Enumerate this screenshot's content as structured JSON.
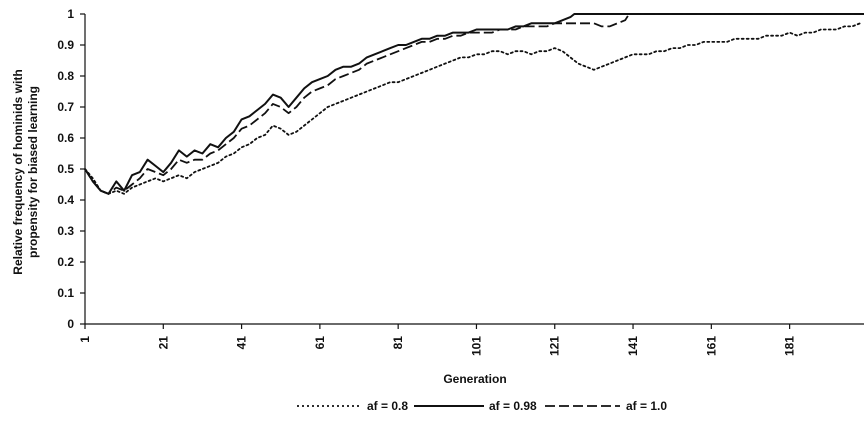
{
  "chart_data": {
    "type": "line",
    "title": "",
    "xlabel": "Generation",
    "ylabel_lines": [
      "Relative frequency of hominids with",
      "propensity for biased learning"
    ],
    "xlim": [
      1,
      200
    ],
    "ylim": [
      0,
      1
    ],
    "x_ticks": [
      "1",
      "21",
      "41",
      "61",
      "81",
      "101",
      "121",
      "141",
      "161",
      "181"
    ],
    "x_tick_values": [
      1,
      21,
      41,
      61,
      81,
      101,
      121,
      141,
      161,
      181
    ],
    "y_ticks": [
      "0",
      "0.1",
      "0.2",
      "0.3",
      "0.4",
      "0.5",
      "0.6",
      "0.7",
      "0.8",
      "0.9",
      "1"
    ],
    "y_tick_values": [
      0,
      0.1,
      0.2,
      0.3,
      0.4,
      0.5,
      0.6,
      0.7,
      0.8,
      0.9,
      1.0
    ],
    "grid": false,
    "legend_position": "bottom-center",
    "series": [
      {
        "name": "af = 0.8",
        "style": "dotted",
        "color": "#111111",
        "points": [
          [
            1,
            0.5
          ],
          [
            3,
            0.47
          ],
          [
            5,
            0.43
          ],
          [
            7,
            0.42
          ],
          [
            9,
            0.43
          ],
          [
            11,
            0.42
          ],
          [
            13,
            0.44
          ],
          [
            15,
            0.45
          ],
          [
            17,
            0.46
          ],
          [
            19,
            0.47
          ],
          [
            21,
            0.46
          ],
          [
            23,
            0.47
          ],
          [
            25,
            0.48
          ],
          [
            27,
            0.47
          ],
          [
            29,
            0.49
          ],
          [
            31,
            0.5
          ],
          [
            33,
            0.51
          ],
          [
            35,
            0.52
          ],
          [
            37,
            0.54
          ],
          [
            39,
            0.55
          ],
          [
            41,
            0.57
          ],
          [
            43,
            0.58
          ],
          [
            45,
            0.6
          ],
          [
            47,
            0.61
          ],
          [
            49,
            0.64
          ],
          [
            51,
            0.63
          ],
          [
            53,
            0.61
          ],
          [
            55,
            0.62
          ],
          [
            57,
            0.64
          ],
          [
            59,
            0.66
          ],
          [
            61,
            0.68
          ],
          [
            63,
            0.7
          ],
          [
            65,
            0.71
          ],
          [
            67,
            0.72
          ],
          [
            69,
            0.73
          ],
          [
            71,
            0.74
          ],
          [
            73,
            0.75
          ],
          [
            75,
            0.76
          ],
          [
            77,
            0.77
          ],
          [
            79,
            0.78
          ],
          [
            81,
            0.78
          ],
          [
            83,
            0.79
          ],
          [
            85,
            0.8
          ],
          [
            87,
            0.81
          ],
          [
            89,
            0.82
          ],
          [
            91,
            0.83
          ],
          [
            93,
            0.84
          ],
          [
            95,
            0.85
          ],
          [
            97,
            0.86
          ],
          [
            99,
            0.86
          ],
          [
            101,
            0.87
          ],
          [
            103,
            0.87
          ],
          [
            105,
            0.88
          ],
          [
            107,
            0.88
          ],
          [
            109,
            0.87
          ],
          [
            111,
            0.88
          ],
          [
            113,
            0.88
          ],
          [
            115,
            0.87
          ],
          [
            117,
            0.88
          ],
          [
            119,
            0.88
          ],
          [
            121,
            0.89
          ],
          [
            123,
            0.88
          ],
          [
            125,
            0.86
          ],
          [
            127,
            0.84
          ],
          [
            129,
            0.83
          ],
          [
            131,
            0.82
          ],
          [
            133,
            0.83
          ],
          [
            135,
            0.84
          ],
          [
            137,
            0.85
          ],
          [
            139,
            0.86
          ],
          [
            141,
            0.87
          ],
          [
            143,
            0.87
          ],
          [
            145,
            0.87
          ],
          [
            147,
            0.88
          ],
          [
            149,
            0.88
          ],
          [
            151,
            0.89
          ],
          [
            153,
            0.89
          ],
          [
            155,
            0.9
          ],
          [
            157,
            0.9
          ],
          [
            159,
            0.91
          ],
          [
            161,
            0.91
          ],
          [
            163,
            0.91
          ],
          [
            165,
            0.91
          ],
          [
            167,
            0.92
          ],
          [
            169,
            0.92
          ],
          [
            171,
            0.92
          ],
          [
            173,
            0.92
          ],
          [
            175,
            0.93
          ],
          [
            177,
            0.93
          ],
          [
            179,
            0.93
          ],
          [
            181,
            0.94
          ],
          [
            183,
            0.93
          ],
          [
            185,
            0.94
          ],
          [
            187,
            0.94
          ],
          [
            189,
            0.95
          ],
          [
            191,
            0.95
          ],
          [
            193,
            0.95
          ],
          [
            195,
            0.96
          ],
          [
            197,
            0.96
          ],
          [
            199,
            0.97
          ]
        ]
      },
      {
        "name": "af = 0.98",
        "style": "solid",
        "color": "#111111",
        "points": [
          [
            1,
            0.5
          ],
          [
            3,
            0.46
          ],
          [
            5,
            0.43
          ],
          [
            7,
            0.42
          ],
          [
            9,
            0.46
          ],
          [
            11,
            0.43
          ],
          [
            13,
            0.48
          ],
          [
            15,
            0.49
          ],
          [
            17,
            0.53
          ],
          [
            19,
            0.51
          ],
          [
            21,
            0.49
          ],
          [
            23,
            0.52
          ],
          [
            25,
            0.56
          ],
          [
            27,
            0.54
          ],
          [
            29,
            0.56
          ],
          [
            31,
            0.55
          ],
          [
            33,
            0.58
          ],
          [
            35,
            0.57
          ],
          [
            37,
            0.6
          ],
          [
            39,
            0.62
          ],
          [
            41,
            0.66
          ],
          [
            43,
            0.67
          ],
          [
            45,
            0.69
          ],
          [
            47,
            0.71
          ],
          [
            49,
            0.74
          ],
          [
            51,
            0.73
          ],
          [
            53,
            0.7
          ],
          [
            55,
            0.73
          ],
          [
            57,
            0.76
          ],
          [
            59,
            0.78
          ],
          [
            61,
            0.79
          ],
          [
            63,
            0.8
          ],
          [
            65,
            0.82
          ],
          [
            67,
            0.83
          ],
          [
            69,
            0.83
          ],
          [
            71,
            0.84
          ],
          [
            73,
            0.86
          ],
          [
            75,
            0.87
          ],
          [
            77,
            0.88
          ],
          [
            79,
            0.89
          ],
          [
            81,
            0.9
          ],
          [
            83,
            0.9
          ],
          [
            85,
            0.91
          ],
          [
            87,
            0.92
          ],
          [
            89,
            0.92
          ],
          [
            91,
            0.93
          ],
          [
            93,
            0.93
          ],
          [
            95,
            0.94
          ],
          [
            97,
            0.94
          ],
          [
            99,
            0.94
          ],
          [
            101,
            0.95
          ],
          [
            103,
            0.95
          ],
          [
            105,
            0.95
          ],
          [
            107,
            0.95
          ],
          [
            109,
            0.95
          ],
          [
            111,
            0.96
          ],
          [
            113,
            0.96
          ],
          [
            115,
            0.97
          ],
          [
            117,
            0.97
          ],
          [
            119,
            0.97
          ],
          [
            121,
            0.97
          ],
          [
            123,
            0.98
          ],
          [
            125,
            0.99
          ],
          [
            126,
            1.0
          ],
          [
            131,
            1.0
          ],
          [
            141,
            1.0
          ],
          [
            151,
            1.0
          ],
          [
            161,
            1.0
          ],
          [
            171,
            1.0
          ],
          [
            181,
            1.0
          ],
          [
            191,
            1.0
          ],
          [
            200,
            1.0
          ]
        ]
      },
      {
        "name": "af = 1.0",
        "style": "dashed",
        "color": "#111111",
        "points": [
          [
            1,
            0.5
          ],
          [
            3,
            0.46
          ],
          [
            5,
            0.43
          ],
          [
            7,
            0.42
          ],
          [
            9,
            0.44
          ],
          [
            11,
            0.43
          ],
          [
            13,
            0.45
          ],
          [
            15,
            0.47
          ],
          [
            17,
            0.5
          ],
          [
            19,
            0.49
          ],
          [
            21,
            0.48
          ],
          [
            23,
            0.5
          ],
          [
            25,
            0.53
          ],
          [
            27,
            0.52
          ],
          [
            29,
            0.53
          ],
          [
            31,
            0.53
          ],
          [
            33,
            0.55
          ],
          [
            35,
            0.56
          ],
          [
            37,
            0.58
          ],
          [
            39,
            0.6
          ],
          [
            41,
            0.63
          ],
          [
            43,
            0.64
          ],
          [
            45,
            0.66
          ],
          [
            47,
            0.68
          ],
          [
            49,
            0.71
          ],
          [
            51,
            0.7
          ],
          [
            53,
            0.68
          ],
          [
            55,
            0.7
          ],
          [
            57,
            0.73
          ],
          [
            59,
            0.75
          ],
          [
            61,
            0.76
          ],
          [
            63,
            0.77
          ],
          [
            65,
            0.79
          ],
          [
            67,
            0.8
          ],
          [
            69,
            0.81
          ],
          [
            71,
            0.82
          ],
          [
            73,
            0.84
          ],
          [
            75,
            0.85
          ],
          [
            77,
            0.86
          ],
          [
            79,
            0.87
          ],
          [
            81,
            0.88
          ],
          [
            83,
            0.89
          ],
          [
            85,
            0.9
          ],
          [
            87,
            0.91
          ],
          [
            89,
            0.91
          ],
          [
            91,
            0.92
          ],
          [
            93,
            0.92
          ],
          [
            95,
            0.93
          ],
          [
            97,
            0.93
          ],
          [
            99,
            0.94
          ],
          [
            101,
            0.94
          ],
          [
            103,
            0.94
          ],
          [
            105,
            0.94
          ],
          [
            107,
            0.95
          ],
          [
            109,
            0.95
          ],
          [
            111,
            0.95
          ],
          [
            113,
            0.96
          ],
          [
            115,
            0.96
          ],
          [
            117,
            0.96
          ],
          [
            119,
            0.96
          ],
          [
            121,
            0.97
          ],
          [
            123,
            0.97
          ],
          [
            125,
            0.97
          ],
          [
            127,
            0.97
          ],
          [
            129,
            0.97
          ],
          [
            131,
            0.97
          ],
          [
            133,
            0.96
          ],
          [
            135,
            0.96
          ],
          [
            137,
            0.97
          ],
          [
            139,
            0.98
          ],
          [
            140,
            1.0
          ],
          [
            151,
            1.0
          ],
          [
            161,
            1.0
          ],
          [
            171,
            1.0
          ],
          [
            181,
            1.0
          ],
          [
            191,
            1.0
          ],
          [
            200,
            1.0
          ]
        ]
      }
    ]
  }
}
